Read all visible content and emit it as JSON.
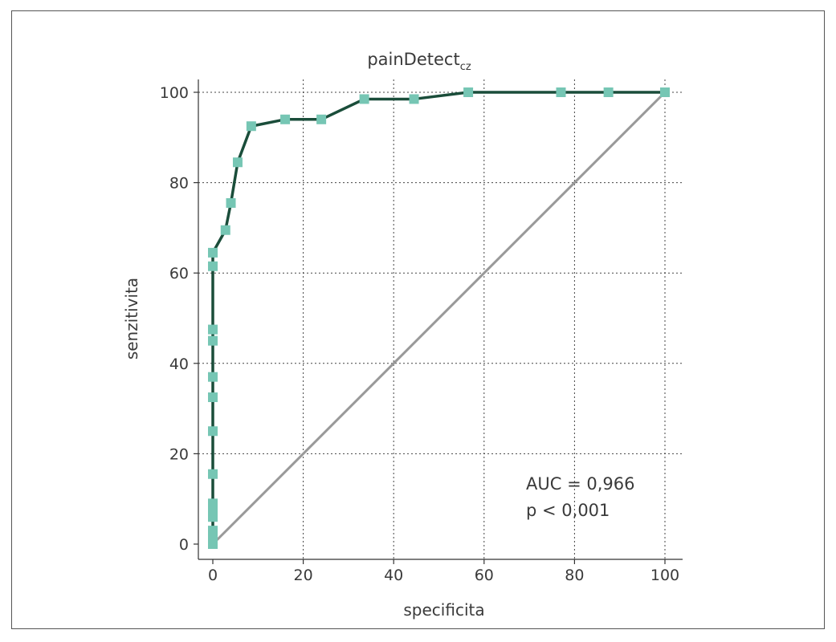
{
  "chart_data": {
    "type": "line",
    "title": "painDetect",
    "title_subscript": "cz",
    "xlabel": "specificita",
    "ylabel": "senzitivita",
    "xlim": [
      0,
      100
    ],
    "ylim": [
      0,
      100
    ],
    "x_ticks": [
      "0",
      "20",
      "40",
      "60",
      "80",
      "100"
    ],
    "y_ticks": [
      "0",
      "20",
      "40",
      "60",
      "80",
      "100"
    ],
    "grid": true,
    "series": [
      {
        "type": "line-with-markers",
        "color": "#1a4d3a",
        "marker_color": "#76c6b4",
        "points": [
          [
            0,
            0
          ],
          [
            0,
            1
          ],
          [
            0,
            2
          ],
          [
            0,
            3
          ],
          [
            0,
            6
          ],
          [
            0,
            7.5
          ],
          [
            0,
            9
          ],
          [
            0,
            15.5
          ],
          [
            0,
            25
          ],
          [
            0,
            32.5
          ],
          [
            0,
            37
          ],
          [
            0,
            45
          ],
          [
            0,
            47.5
          ],
          [
            0,
            61.5
          ],
          [
            0,
            64.5
          ],
          [
            2.8,
            69.5
          ],
          [
            4,
            75.5
          ],
          [
            5.5,
            84.5
          ],
          [
            8.5,
            92.5
          ],
          [
            16,
            94
          ],
          [
            24,
            94
          ],
          [
            33.5,
            98.5
          ],
          [
            44.5,
            98.5
          ],
          [
            56.5,
            100
          ],
          [
            77,
            100
          ],
          [
            87.5,
            100
          ],
          [
            100,
            100
          ]
        ]
      },
      {
        "type": "reference-line",
        "color": "#999999",
        "points": [
          [
            0,
            0
          ],
          [
            100,
            100
          ]
        ]
      }
    ],
    "annotations": [
      "AUC = 0,966",
      "p < 0,001"
    ]
  }
}
